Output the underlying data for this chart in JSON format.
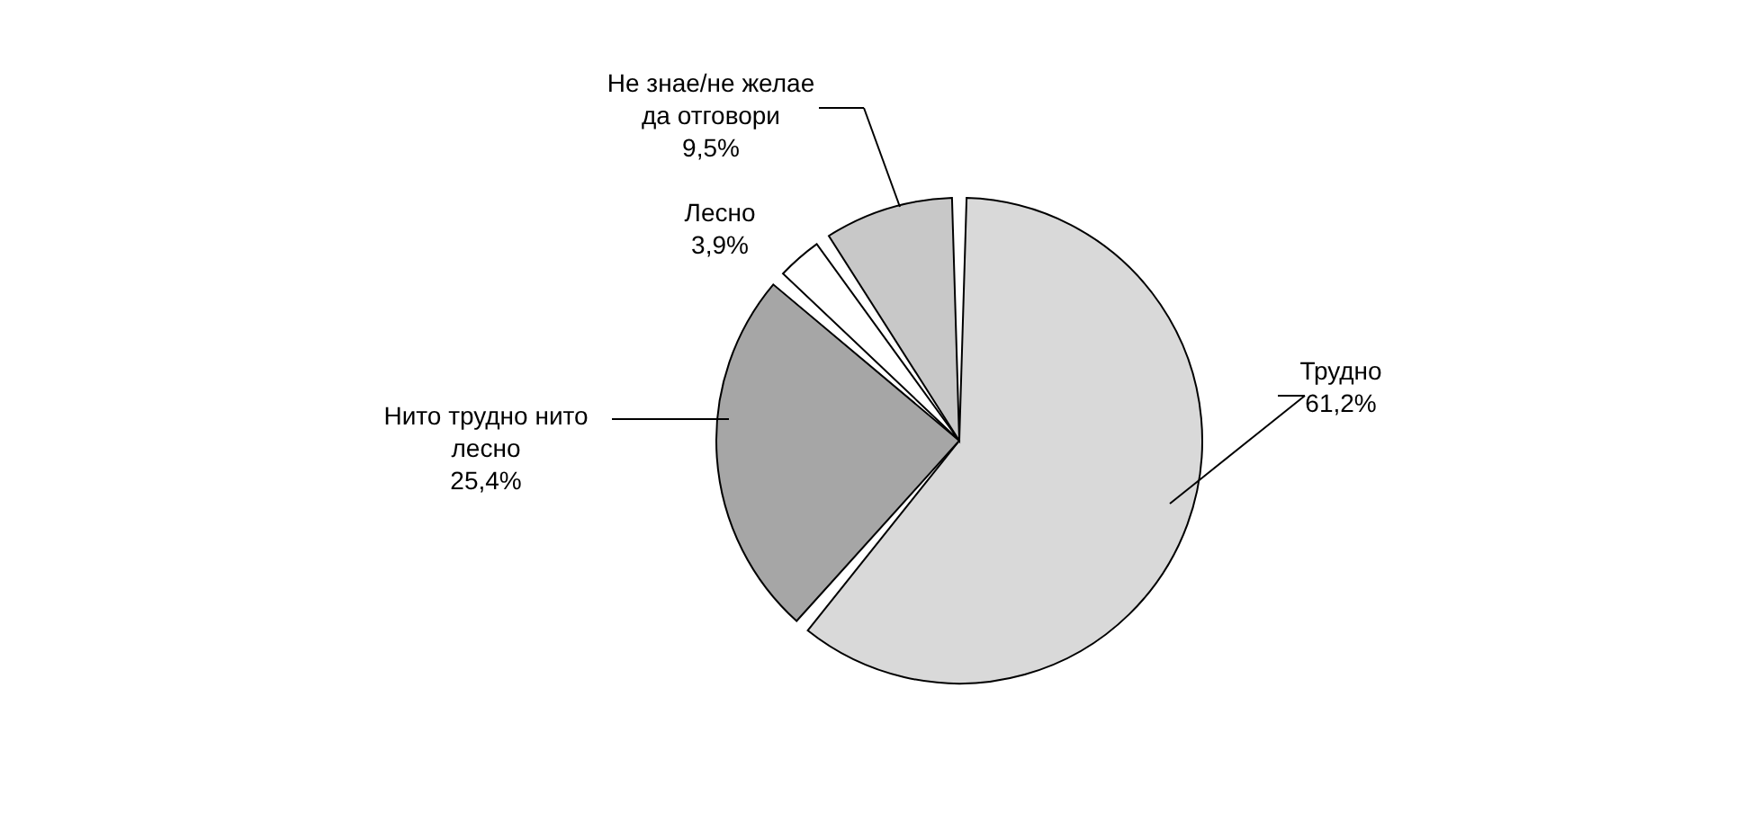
{
  "chart_data": {
    "type": "pie",
    "categories": [
      "Трудно",
      "Нито трудно нито лесно",
      "Лесно",
      "Не знае/не желае да отговори"
    ],
    "values": [
      61.2,
      25.4,
      3.9,
      9.5
    ],
    "value_labels": [
      "61,2%",
      "25,4%",
      "3,9%",
      "9,5%"
    ],
    "colors": [
      "#d9d9d9",
      "#a6a6a6",
      "#ffffff",
      "#c8c8c8"
    ]
  }
}
